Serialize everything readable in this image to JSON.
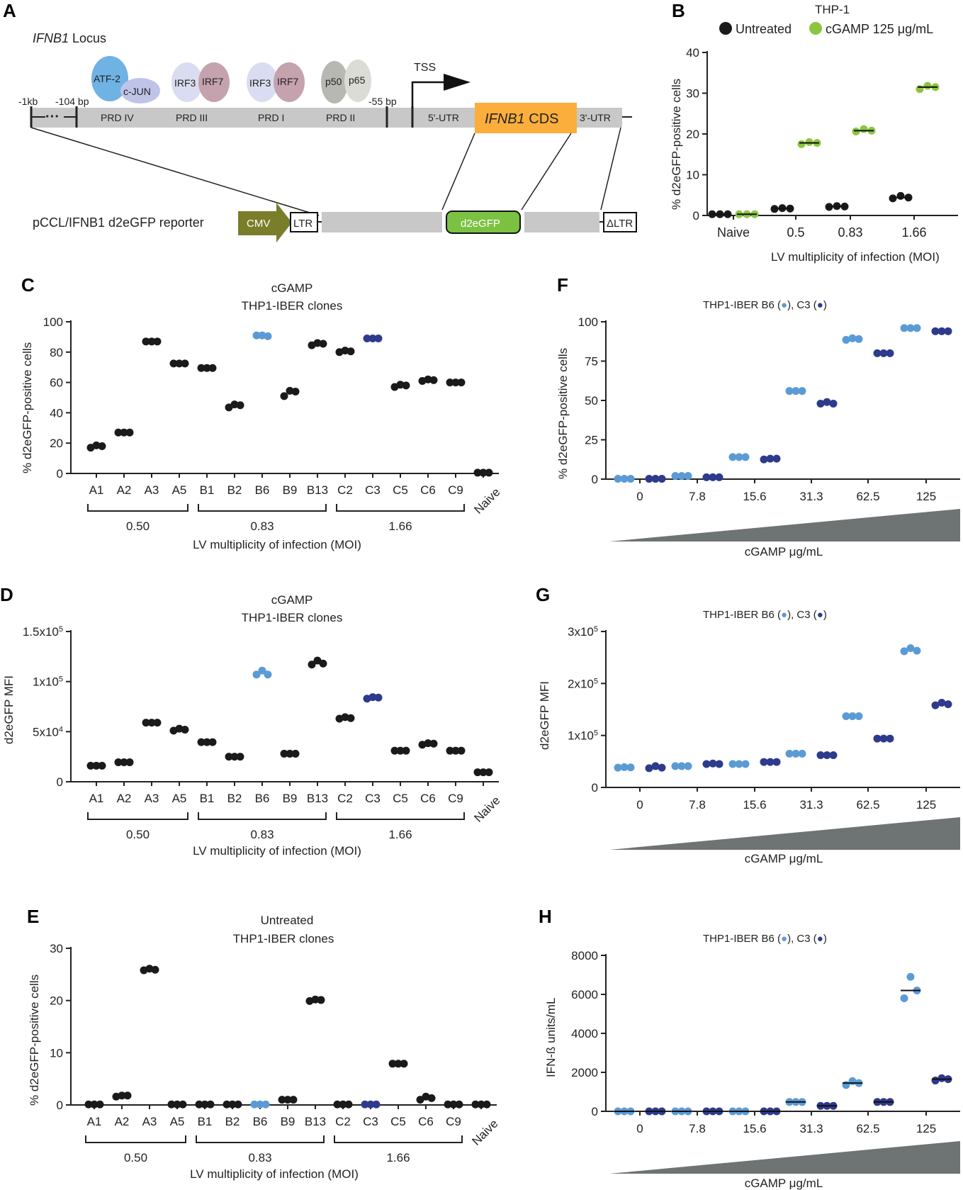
{
  "panels": {
    "A": {
      "label": "A",
      "locus_title_italic": "IFNB1",
      "locus_title_rest": " Locus",
      "markers": {
        "m1kb": "-1kb",
        "m104": "-104 bp",
        "m55": "-55 bp"
      },
      "regions": [
        "PRD IV",
        "PRD III",
        "PRD I",
        "PRD II"
      ],
      "factors": {
        "atf2": "ATF-2",
        "cjun": "c-JUN",
        "irf3a": "IRF3",
        "irf7a": "IRF7",
        "irf3b": "IRF3",
        "irf7b": "IRF7",
        "p50": "p50",
        "p65": "p65"
      },
      "tss": "TSS",
      "utr5": "5'-UTR",
      "cds_italic": "IFNB1",
      "cds_rest": " CDS",
      "utr3": "3'-UTR",
      "reporter_label": "pCCL/IFNB1 d2eGFP reporter",
      "cmv": "CMV",
      "ltr": "LTR",
      "gfp": "d2eGFP",
      "dltr": "ΔLTR",
      "colors": {
        "cds": "#FBAE3C",
        "atf2": "#6FB2E4",
        "cjun": "#BFC3E8",
        "irf3": "#DADDF1",
        "irf7": "#C4A2AE",
        "p50": "#B8B8B2",
        "p65": "#DCDCD6",
        "cmv": "#7A7E2A",
        "gfp": "#7CC242",
        "bar": "#C8C8C8"
      }
    },
    "B": {
      "label": "B",
      "title": "THP-1",
      "legend": [
        "Untreated",
        "cGAMP 125 μg/mL"
      ],
      "ylabel": "% d2eGFP-positive cells",
      "xlabel": "LV multiplicity of infection (MOI)"
    },
    "C": {
      "label": "C",
      "title1": "cGAMP",
      "title2": "THP1-IBER clones",
      "ylabel": "% d2eGFP-positive cells",
      "xlabel": "LV multiplicity of infection (MOI)",
      "groups": [
        "0.50",
        "0.83",
        "1.66"
      ]
    },
    "D": {
      "label": "D",
      "title1": "cGAMP",
      "title2": "THP1-IBER clones",
      "ylabel": "d2eGFP MFI",
      "xlabel": "LV multiplicity of infection (MOI)",
      "groups": [
        "0.50",
        "0.83",
        "1.66"
      ]
    },
    "E": {
      "label": "E",
      "title1": "Untreated",
      "title2": "THP1-IBER clones",
      "ylabel": "% d2eGFP-positive cells",
      "xlabel": "LV multiplicity of infection (MOI)",
      "groups": [
        "0.50",
        "0.83",
        "1.66"
      ]
    },
    "F": {
      "label": "F",
      "legend": "THP1-IBER B6 (●), C3 (●)",
      "ylabel": "% d2eGFP-positive cells",
      "xlabel": "cGAMP μg/mL"
    },
    "G": {
      "label": "G",
      "legend": "THP1-IBER B6 (●), C3 (●)",
      "ylabel": "d2eGFP MFI",
      "xlabel": "cGAMP μg/mL"
    },
    "H": {
      "label": "H",
      "legend": "THP1-IBER B6 (●), C3 (●)",
      "ylabel": "IFN-ß units/mL",
      "xlabel": "cGAMP μg/mL"
    }
  },
  "colors": {
    "black": "#1a1a1a",
    "green": "#8CC63F",
    "light_blue": "#5B9BD5",
    "dark_blue": "#2E3A8C",
    "wedge": "#6E7373"
  },
  "chart_data": [
    {
      "panel": "B",
      "type": "scatter",
      "title": "THP-1",
      "categories": [
        "Naive",
        "0.5",
        "0.83",
        "1.66"
      ],
      "ylim": [
        0,
        40
      ],
      "yticks": [
        0,
        10,
        20,
        30,
        40
      ],
      "ylabel": "% d2eGFP-positive cells",
      "xlabel": "LV multiplicity of infection (MOI)",
      "series": [
        {
          "name": "Untreated",
          "color": "#1a1a1a",
          "values": [
            [
              0.3,
              0.3,
              0.3
            ],
            [
              1.6,
              1.8,
              1.7
            ],
            [
              2.1,
              2.3,
              2.2
            ],
            [
              4.2,
              4.8,
              4.4
            ]
          ]
        },
        {
          "name": "cGAMP 125 μg/mL",
          "color": "#8CC63F",
          "values": [
            [
              0.3,
              0.3,
              0.3
            ],
            [
              17.5,
              18.0,
              17.8
            ],
            [
              20.6,
              21.2,
              20.8
            ],
            [
              31.0,
              31.8,
              31.5
            ]
          ]
        }
      ]
    },
    {
      "panel": "C",
      "type": "scatter",
      "title": "cGAMP THP1-IBER clones",
      "categories": [
        "A1",
        "A2",
        "A3",
        "A5",
        "B1",
        "B2",
        "B6",
        "B9",
        "B13",
        "C2",
        "C3",
        "C5",
        "C6",
        "C9",
        "Naive"
      ],
      "ylim": [
        0,
        100
      ],
      "yticks": [
        0,
        20,
        40,
        60,
        80,
        100
      ],
      "ytick_labels": [
        "0",
        "20",
        "40",
        "60",
        "80",
        "100"
      ],
      "ylabel": "% d2eGFP-positive cells",
      "xlabel": "LV multiplicity of infection (MOI)",
      "values": [
        [
          17,
          18.5,
          18
        ],
        [
          27,
          27,
          27
        ],
        [
          87,
          87,
          87
        ],
        [
          72.5,
          72.5,
          72.5
        ],
        [
          69.5,
          69.5,
          69.5
        ],
        [
          43.5,
          45.5,
          45
        ],
        [
          91,
          91,
          90.5
        ],
        [
          51,
          54.5,
          54
        ],
        [
          84.5,
          86,
          85.5
        ],
        [
          80,
          81,
          80.5
        ],
        [
          89,
          89,
          89
        ],
        [
          57,
          58.5,
          58
        ],
        [
          61,
          62,
          61.5
        ],
        [
          60,
          60,
          60
        ],
        [
          0.5,
          0.5,
          0.5
        ]
      ],
      "point_colors": [
        "#1a1a1a",
        "#1a1a1a",
        "#1a1a1a",
        "#1a1a1a",
        "#1a1a1a",
        "#1a1a1a",
        "#5B9BD5",
        "#1a1a1a",
        "#1a1a1a",
        "#1a1a1a",
        "#2E3A8C",
        "#1a1a1a",
        "#1a1a1a",
        "#1a1a1a",
        "#1a1a1a"
      ],
      "groups": [
        {
          "label": "0.50",
          "from": 0,
          "to": 3
        },
        {
          "label": "0.83",
          "from": 4,
          "to": 8
        },
        {
          "label": "1.66",
          "from": 9,
          "to": 13
        }
      ]
    },
    {
      "panel": "D",
      "type": "scatter",
      "title": "cGAMP THP1-IBER clones",
      "categories": [
        "A1",
        "A2",
        "A3",
        "A5",
        "B1",
        "B2",
        "B6",
        "B9",
        "B13",
        "C2",
        "C3",
        "C5",
        "C6",
        "C9",
        "Naive"
      ],
      "ylim": [
        0,
        150000
      ],
      "yticks": [
        0,
        50000,
        100000,
        150000
      ],
      "ytick_labels": [
        [
          "0",
          ""
        ],
        [
          "5x10",
          "4"
        ],
        [
          "1x10",
          "5"
        ],
        [
          "1.5x10",
          "5"
        ]
      ],
      "ylabel": "d2eGFP MFI",
      "xlabel": "LV multiplicity of infection (MOI)",
      "values": [
        [
          16000,
          16000,
          16000
        ],
        [
          19500,
          19500,
          19500
        ],
        [
          59000,
          59000,
          59000
        ],
        [
          51000,
          53000,
          52000
        ],
        [
          39500,
          39500,
          39500
        ],
        [
          25000,
          25000,
          25000
        ],
        [
          107000,
          111000,
          107000
        ],
        [
          28000,
          28000,
          28000
        ],
        [
          117000,
          121000,
          118000
        ],
        [
          63000,
          64500,
          63500
        ],
        [
          83000,
          84500,
          84000
        ],
        [
          31000,
          31000,
          31000
        ],
        [
          37000,
          38500,
          38000
        ],
        [
          31000,
          31000,
          31000
        ],
        [
          9500,
          9500,
          9500
        ]
      ],
      "point_colors": [
        "#1a1a1a",
        "#1a1a1a",
        "#1a1a1a",
        "#1a1a1a",
        "#1a1a1a",
        "#1a1a1a",
        "#5B9BD5",
        "#1a1a1a",
        "#1a1a1a",
        "#1a1a1a",
        "#2E3A8C",
        "#1a1a1a",
        "#1a1a1a",
        "#1a1a1a",
        "#1a1a1a"
      ],
      "groups": [
        {
          "label": "0.50",
          "from": 0,
          "to": 3
        },
        {
          "label": "0.83",
          "from": 4,
          "to": 8
        },
        {
          "label": "1.66",
          "from": 9,
          "to": 13
        }
      ]
    },
    {
      "panel": "E",
      "type": "scatter",
      "title": "Untreated THP1-IBER clones",
      "categories": [
        "A1",
        "A2",
        "A3",
        "A5",
        "B1",
        "B2",
        "B6",
        "B9",
        "B13",
        "C2",
        "C3",
        "C5",
        "C6",
        "C9",
        "Naive"
      ],
      "ylim": [
        0,
        30
      ],
      "yticks": [
        0,
        10,
        20,
        30
      ],
      "ytick_labels": [
        "0",
        "10",
        "20",
        "30"
      ],
      "ylabel": "% d2eGFP-positive cells",
      "xlabel": "LV multiplicity of infection (MOI)",
      "values": [
        [
          0.1,
          0.1,
          0.1
        ],
        [
          1.6,
          1.8,
          1.8
        ],
        [
          25.8,
          26.1,
          25.9
        ],
        [
          0.1,
          0.1,
          0.1
        ],
        [
          0.1,
          0.1,
          0.1
        ],
        [
          0.1,
          0.1,
          0.1
        ],
        [
          0.1,
          0.1,
          0.1
        ],
        [
          1.0,
          1.0,
          1.0
        ],
        [
          19.9,
          20.2,
          20.1
        ],
        [
          0.1,
          0.1,
          0.1
        ],
        [
          0.1,
          0.1,
          0.1
        ],
        [
          7.9,
          7.9,
          7.9
        ],
        [
          1.0,
          1.6,
          1.3
        ],
        [
          0.1,
          0.1,
          0.1
        ],
        [
          0.1,
          0.1,
          0.1
        ]
      ],
      "point_colors": [
        "#1a1a1a",
        "#1a1a1a",
        "#1a1a1a",
        "#1a1a1a",
        "#1a1a1a",
        "#1a1a1a",
        "#5B9BD5",
        "#1a1a1a",
        "#1a1a1a",
        "#1a1a1a",
        "#2E3A8C",
        "#1a1a1a",
        "#1a1a1a",
        "#1a1a1a",
        "#1a1a1a"
      ],
      "groups": [
        {
          "label": "0.50",
          "from": 0,
          "to": 3
        },
        {
          "label": "0.83",
          "from": 4,
          "to": 8
        },
        {
          "label": "1.66",
          "from": 9,
          "to": 13
        }
      ]
    },
    {
      "panel": "F",
      "type": "scatter",
      "title": "THP1-IBER B6, C3",
      "categories": [
        "0",
        "7.8",
        "15.6",
        "31.3",
        "62.5",
        "125"
      ],
      "ylim": [
        0,
        100
      ],
      "yticks": [
        0,
        25,
        50,
        75,
        100
      ],
      "ytick_labels": [
        "0",
        "25",
        "50",
        "75",
        "100"
      ],
      "ylabel": "% d2eGFP-positive cells",
      "xlabel": "cGAMP μg/mL",
      "series": [
        {
          "name": "B6",
          "color": "#5B9BD5",
          "values": [
            [
              0.2,
              0.2,
              0.2
            ],
            [
              2,
              2,
              2
            ],
            [
              14,
              14,
              14
            ],
            [
              56,
              56,
              56
            ],
            [
              88.5,
              89.5,
              89
            ],
            [
              96,
              96,
              96
            ]
          ]
        },
        {
          "name": "C3",
          "color": "#2E3A8C",
          "values": [
            [
              0.2,
              0.2,
              0.2
            ],
            [
              1.2,
              1.2,
              1.2
            ],
            [
              12.5,
              13,
              13
            ],
            [
              48,
              49,
              48
            ],
            [
              80,
              80,
              80
            ],
            [
              94,
              94,
              94
            ]
          ]
        }
      ]
    },
    {
      "panel": "G",
      "type": "scatter",
      "title": "THP1-IBER B6, C3",
      "categories": [
        "0",
        "7.8",
        "15.6",
        "31.3",
        "62.5",
        "125"
      ],
      "ylim": [
        0,
        300000
      ],
      "yticks": [
        0,
        100000,
        200000,
        300000
      ],
      "ytick_labels": [
        [
          "0",
          ""
        ],
        [
          "1x10",
          "5"
        ],
        [
          "2x10",
          "5"
        ],
        [
          "3x10",
          "5"
        ]
      ],
      "ylabel": "d2eGFP MFI",
      "xlabel": "cGAMP μg/mL",
      "series": [
        {
          "name": "B6",
          "color": "#5B9BD5",
          "values": [
            [
              38000,
              39000,
              38500
            ],
            [
              41000,
              41000,
              41000
            ],
            [
              45000,
              45000,
              45000
            ],
            [
              65000,
              65000,
              65000
            ],
            [
              137000,
              137000,
              137000
            ],
            [
              262000,
              268000,
              263000
            ]
          ]
        },
        {
          "name": "C3",
          "color": "#2E3A8C",
          "values": [
            [
              37000,
              41000,
              38000
            ],
            [
              45000,
              46000,
              45000
            ],
            [
              49000,
              49000,
              49000
            ],
            [
              62000,
              62000,
              62000
            ],
            [
              94000,
              94000,
              94000
            ],
            [
              158000,
              163000,
              160000
            ]
          ]
        }
      ]
    },
    {
      "panel": "H",
      "type": "scatter",
      "title": "THP1-IBER B6, C3",
      "categories": [
        "0",
        "7.8",
        "15.6",
        "31.3",
        "62.5",
        "125"
      ],
      "ylim": [
        0,
        8000
      ],
      "yticks": [
        0,
        2000,
        4000,
        6000,
        8000
      ],
      "ytick_labels": [
        "0",
        "2000",
        "4000",
        "6000",
        "8000"
      ],
      "ylabel": "IFN-ß units/mL",
      "xlabel": "cGAMP μg/mL",
      "series": [
        {
          "name": "B6",
          "color": "#5B9BD5",
          "values": [
            [
              0,
              0,
              0
            ],
            [
              0,
              0,
              0
            ],
            [
              0,
              0,
              0
            ],
            [
              480,
              480,
              480
            ],
            [
              1350,
              1550,
              1450
            ],
            [
              5800,
              6900,
              6200
            ]
          ]
        },
        {
          "name": "C3",
          "color": "#2E3A8C",
          "values": [
            [
              0,
              0,
              0
            ],
            [
              0,
              0,
              0
            ],
            [
              0,
              0,
              0
            ],
            [
              280,
              280,
              280
            ],
            [
              480,
              480,
              480
            ],
            [
              1580,
              1700,
              1650
            ]
          ]
        }
      ]
    }
  ]
}
